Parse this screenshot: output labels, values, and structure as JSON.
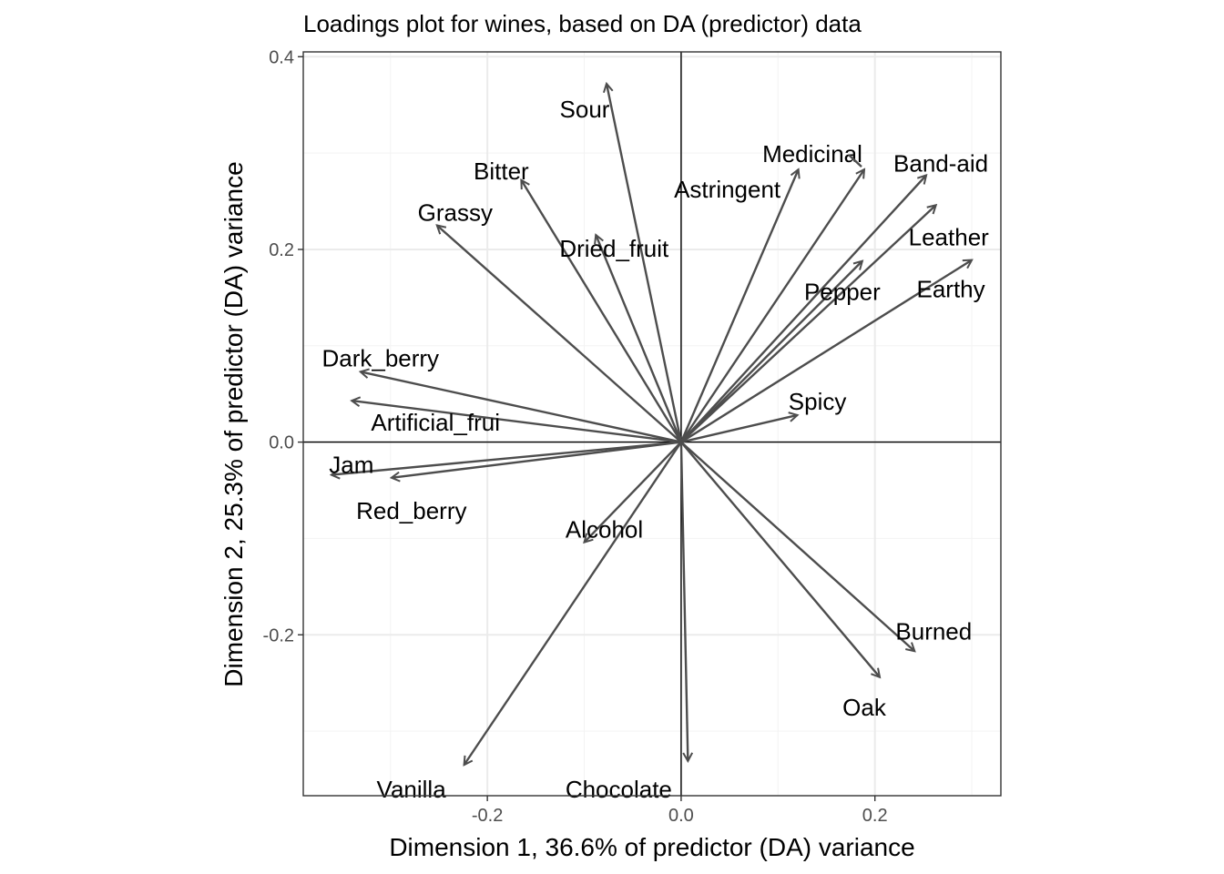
{
  "chart_data": {
    "type": "biplot-loadings",
    "title": "Loadings plot for wines, based on DA (predictor) data",
    "xlabel": "Dimension 1, 36.6% of predictor (DA) variance",
    "ylabel": "Dimension 2, 25.3% of predictor (DA) variance",
    "xlim": [
      -0.39,
      0.33
    ],
    "ylim": [
      -0.367,
      0.405
    ],
    "x_ticks": [
      -0.2,
      0.0,
      0.2
    ],
    "x_tick_labels": [
      "-0.2",
      "0.0",
      "0.2"
    ],
    "y_ticks": [
      -0.2,
      0.0,
      0.2,
      0.4
    ],
    "y_tick_labels": [
      "-0.2",
      "0.0",
      "0.2",
      "0.4"
    ],
    "grid": true,
    "legend": "none",
    "arrow_color": "#4d4d4d",
    "variables": [
      {
        "name": "Sour",
        "x": -0.077,
        "y": 0.372
      },
      {
        "name": "Bitter",
        "x": -0.165,
        "y": 0.272
      },
      {
        "name": "Grassy",
        "x": -0.252,
        "y": 0.225
      },
      {
        "name": "Dried_fruit",
        "x": -0.088,
        "y": 0.215
      },
      {
        "name": "Astringent",
        "x": 0.121,
        "y": 0.283
      },
      {
        "name": "Medicinal",
        "x": 0.189,
        "y": 0.283
      },
      {
        "name": "Band-aid",
        "x": 0.253,
        "y": 0.277
      },
      {
        "name": "Leather",
        "x": 0.263,
        "y": 0.246
      },
      {
        "name": "Pepper",
        "x": 0.187,
        "y": 0.188
      },
      {
        "name": "Earthy",
        "x": 0.3,
        "y": 0.189
      },
      {
        "name": "Spicy",
        "x": 0.12,
        "y": 0.028
      },
      {
        "name": "Dark_berry",
        "x": -0.331,
        "y": 0.073
      },
      {
        "name": "Artificial_frui",
        "x": -0.34,
        "y": 0.043
      },
      {
        "name": "Jam",
        "x": -0.361,
        "y": -0.034
      },
      {
        "name": "Red_berry",
        "x": -0.299,
        "y": -0.037
      },
      {
        "name": "Alcohol",
        "x": -0.1,
        "y": -0.104
      },
      {
        "name": "Vanilla",
        "x": -0.224,
        "y": -0.335
      },
      {
        "name": "Chocolate",
        "x": 0.007,
        "y": -0.331
      },
      {
        "name": "Burned",
        "x": 0.241,
        "y": -0.217
      },
      {
        "name": "Oak",
        "x": 0.205,
        "y": -0.244
      }
    ]
  }
}
